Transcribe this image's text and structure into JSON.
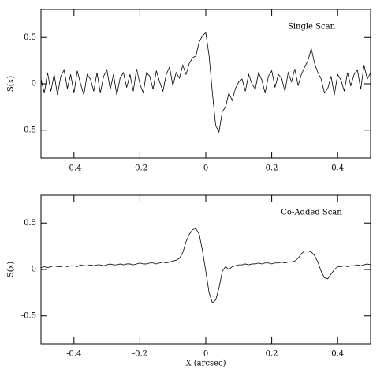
{
  "chart_data": [
    {
      "type": "line",
      "annotation": "Single Scan",
      "ylabel": "S(x)",
      "xlim": [
        -0.5,
        0.5
      ],
      "ylim": [
        -0.8,
        0.8
      ],
      "xticks": [
        -0.4,
        -0.2,
        0,
        0.2,
        0.4
      ],
      "yticks": [
        -0.5,
        0,
        0.5
      ],
      "color": "#000000",
      "x": [
        -0.5,
        -0.49,
        -0.48,
        -0.47,
        -0.46,
        -0.45,
        -0.44,
        -0.43,
        -0.42,
        -0.41,
        -0.4,
        -0.39,
        -0.38,
        -0.37,
        -0.36,
        -0.35,
        -0.34,
        -0.33,
        -0.32,
        -0.31,
        -0.3,
        -0.29,
        -0.28,
        -0.27,
        -0.26,
        -0.25,
        -0.24,
        -0.23,
        -0.22,
        -0.21,
        -0.2,
        -0.19,
        -0.18,
        -0.17,
        -0.16,
        -0.15,
        -0.14,
        -0.13,
        -0.12,
        -0.11,
        -0.1,
        -0.09,
        -0.08,
        -0.07,
        -0.06,
        -0.05,
        -0.04,
        -0.03,
        -0.02,
        -0.01,
        0,
        0.01,
        0.02,
        0.03,
        0.04,
        0.05,
        0.06,
        0.07,
        0.08,
        0.09,
        0.1,
        0.11,
        0.12,
        0.13,
        0.14,
        0.15,
        0.16,
        0.17,
        0.18,
        0.19,
        0.2,
        0.21,
        0.22,
        0.23,
        0.24,
        0.25,
        0.26,
        0.27,
        0.28,
        0.29,
        0.3,
        0.31,
        0.32,
        0.33,
        0.34,
        0.35,
        0.36,
        0.37,
        0.38,
        0.39,
        0.4,
        0.41,
        0.42,
        0.43,
        0.44,
        0.45,
        0.46,
        0.47,
        0.48,
        0.49,
        0.5
      ],
      "values": [
        0.05,
        -0.1,
        0.12,
        -0.08,
        0.1,
        -0.12,
        0.08,
        0.15,
        -0.05,
        0.1,
        -0.1,
        0.14,
        0.0,
        -0.12,
        0.1,
        0.05,
        -0.08,
        0.12,
        -0.1,
        0.08,
        0.15,
        -0.06,
        0.1,
        -0.12,
        0.06,
        0.12,
        -0.04,
        0.1,
        -0.08,
        0.16,
        0.0,
        -0.1,
        0.12,
        0.08,
        -0.06,
        0.14,
        0.02,
        -0.08,
        0.1,
        0.18,
        -0.02,
        0.12,
        0.06,
        0.2,
        0.1,
        0.22,
        0.28,
        0.3,
        0.45,
        0.52,
        0.55,
        0.3,
        -0.1,
        -0.45,
        -0.52,
        -0.3,
        -0.25,
        -0.1,
        -0.18,
        -0.05,
        0.02,
        0.05,
        -0.08,
        0.1,
        0.0,
        -0.06,
        0.12,
        0.04,
        -0.1,
        0.08,
        0.14,
        -0.04,
        0.1,
        0.06,
        -0.08,
        0.12,
        0.02,
        0.16,
        -0.02,
        0.1,
        0.18,
        0.25,
        0.38,
        0.22,
        0.12,
        0.05,
        -0.1,
        -0.05,
        0.08,
        -0.12,
        0.1,
        0.04,
        -0.08,
        0.12,
        -0.02,
        0.1,
        0.15,
        -0.06,
        0.2,
        0.05,
        0.12
      ]
    },
    {
      "type": "line",
      "annotation": "Co-Added Scan",
      "ylabel": "S(x)",
      "xlabel": "X (arcsec)",
      "xlim": [
        -0.5,
        0.5
      ],
      "ylim": [
        -0.8,
        0.8
      ],
      "xticks": [
        -0.4,
        -0.2,
        0,
        0.2,
        0.4
      ],
      "yticks": [
        -0.5,
        0,
        0.5
      ],
      "color": "#000000",
      "x": [
        -0.5,
        -0.49,
        -0.48,
        -0.47,
        -0.46,
        -0.45,
        -0.44,
        -0.43,
        -0.42,
        -0.41,
        -0.4,
        -0.39,
        -0.38,
        -0.37,
        -0.36,
        -0.35,
        -0.34,
        -0.33,
        -0.32,
        -0.31,
        -0.3,
        -0.29,
        -0.28,
        -0.27,
        -0.26,
        -0.25,
        -0.24,
        -0.23,
        -0.22,
        -0.21,
        -0.2,
        -0.19,
        -0.18,
        -0.17,
        -0.16,
        -0.15,
        -0.14,
        -0.13,
        -0.12,
        -0.11,
        -0.1,
        -0.09,
        -0.08,
        -0.07,
        -0.06,
        -0.05,
        -0.04,
        -0.03,
        -0.02,
        -0.01,
        0,
        0.01,
        0.02,
        0.03,
        0.04,
        0.05,
        0.06,
        0.07,
        0.08,
        0.09,
        0.1,
        0.11,
        0.12,
        0.13,
        0.14,
        0.15,
        0.16,
        0.17,
        0.18,
        0.19,
        0.2,
        0.21,
        0.22,
        0.23,
        0.24,
        0.25,
        0.26,
        0.27,
        0.28,
        0.29,
        0.3,
        0.31,
        0.32,
        0.33,
        0.34,
        0.35,
        0.36,
        0.37,
        0.38,
        0.39,
        0.4,
        0.41,
        0.42,
        0.43,
        0.44,
        0.45,
        0.46,
        0.47,
        0.48,
        0.49,
        0.5
      ],
      "values": [
        0.02,
        0.03,
        0.02,
        0.03,
        0.04,
        0.03,
        0.03,
        0.04,
        0.03,
        0.04,
        0.04,
        0.03,
        0.05,
        0.04,
        0.04,
        0.05,
        0.04,
        0.05,
        0.05,
        0.04,
        0.05,
        0.06,
        0.05,
        0.05,
        0.06,
        0.05,
        0.06,
        0.06,
        0.05,
        0.06,
        0.07,
        0.06,
        0.06,
        0.07,
        0.07,
        0.06,
        0.07,
        0.08,
        0.07,
        0.08,
        0.09,
        0.1,
        0.12,
        0.18,
        0.3,
        0.38,
        0.43,
        0.44,
        0.38,
        0.2,
        -0.02,
        -0.25,
        -0.36,
        -0.33,
        -0.2,
        -0.02,
        0.03,
        0.0,
        0.03,
        0.04,
        0.05,
        0.05,
        0.06,
        0.05,
        0.06,
        0.06,
        0.07,
        0.06,
        0.07,
        0.07,
        0.06,
        0.07,
        0.07,
        0.08,
        0.07,
        0.08,
        0.08,
        0.09,
        0.12,
        0.17,
        0.2,
        0.2,
        0.19,
        0.15,
        0.08,
        -0.02,
        -0.09,
        -0.1,
        -0.05,
        0.0,
        0.03,
        0.03,
        0.04,
        0.03,
        0.04,
        0.04,
        0.05,
        0.04,
        0.05,
        0.06,
        0.05
      ]
    }
  ]
}
